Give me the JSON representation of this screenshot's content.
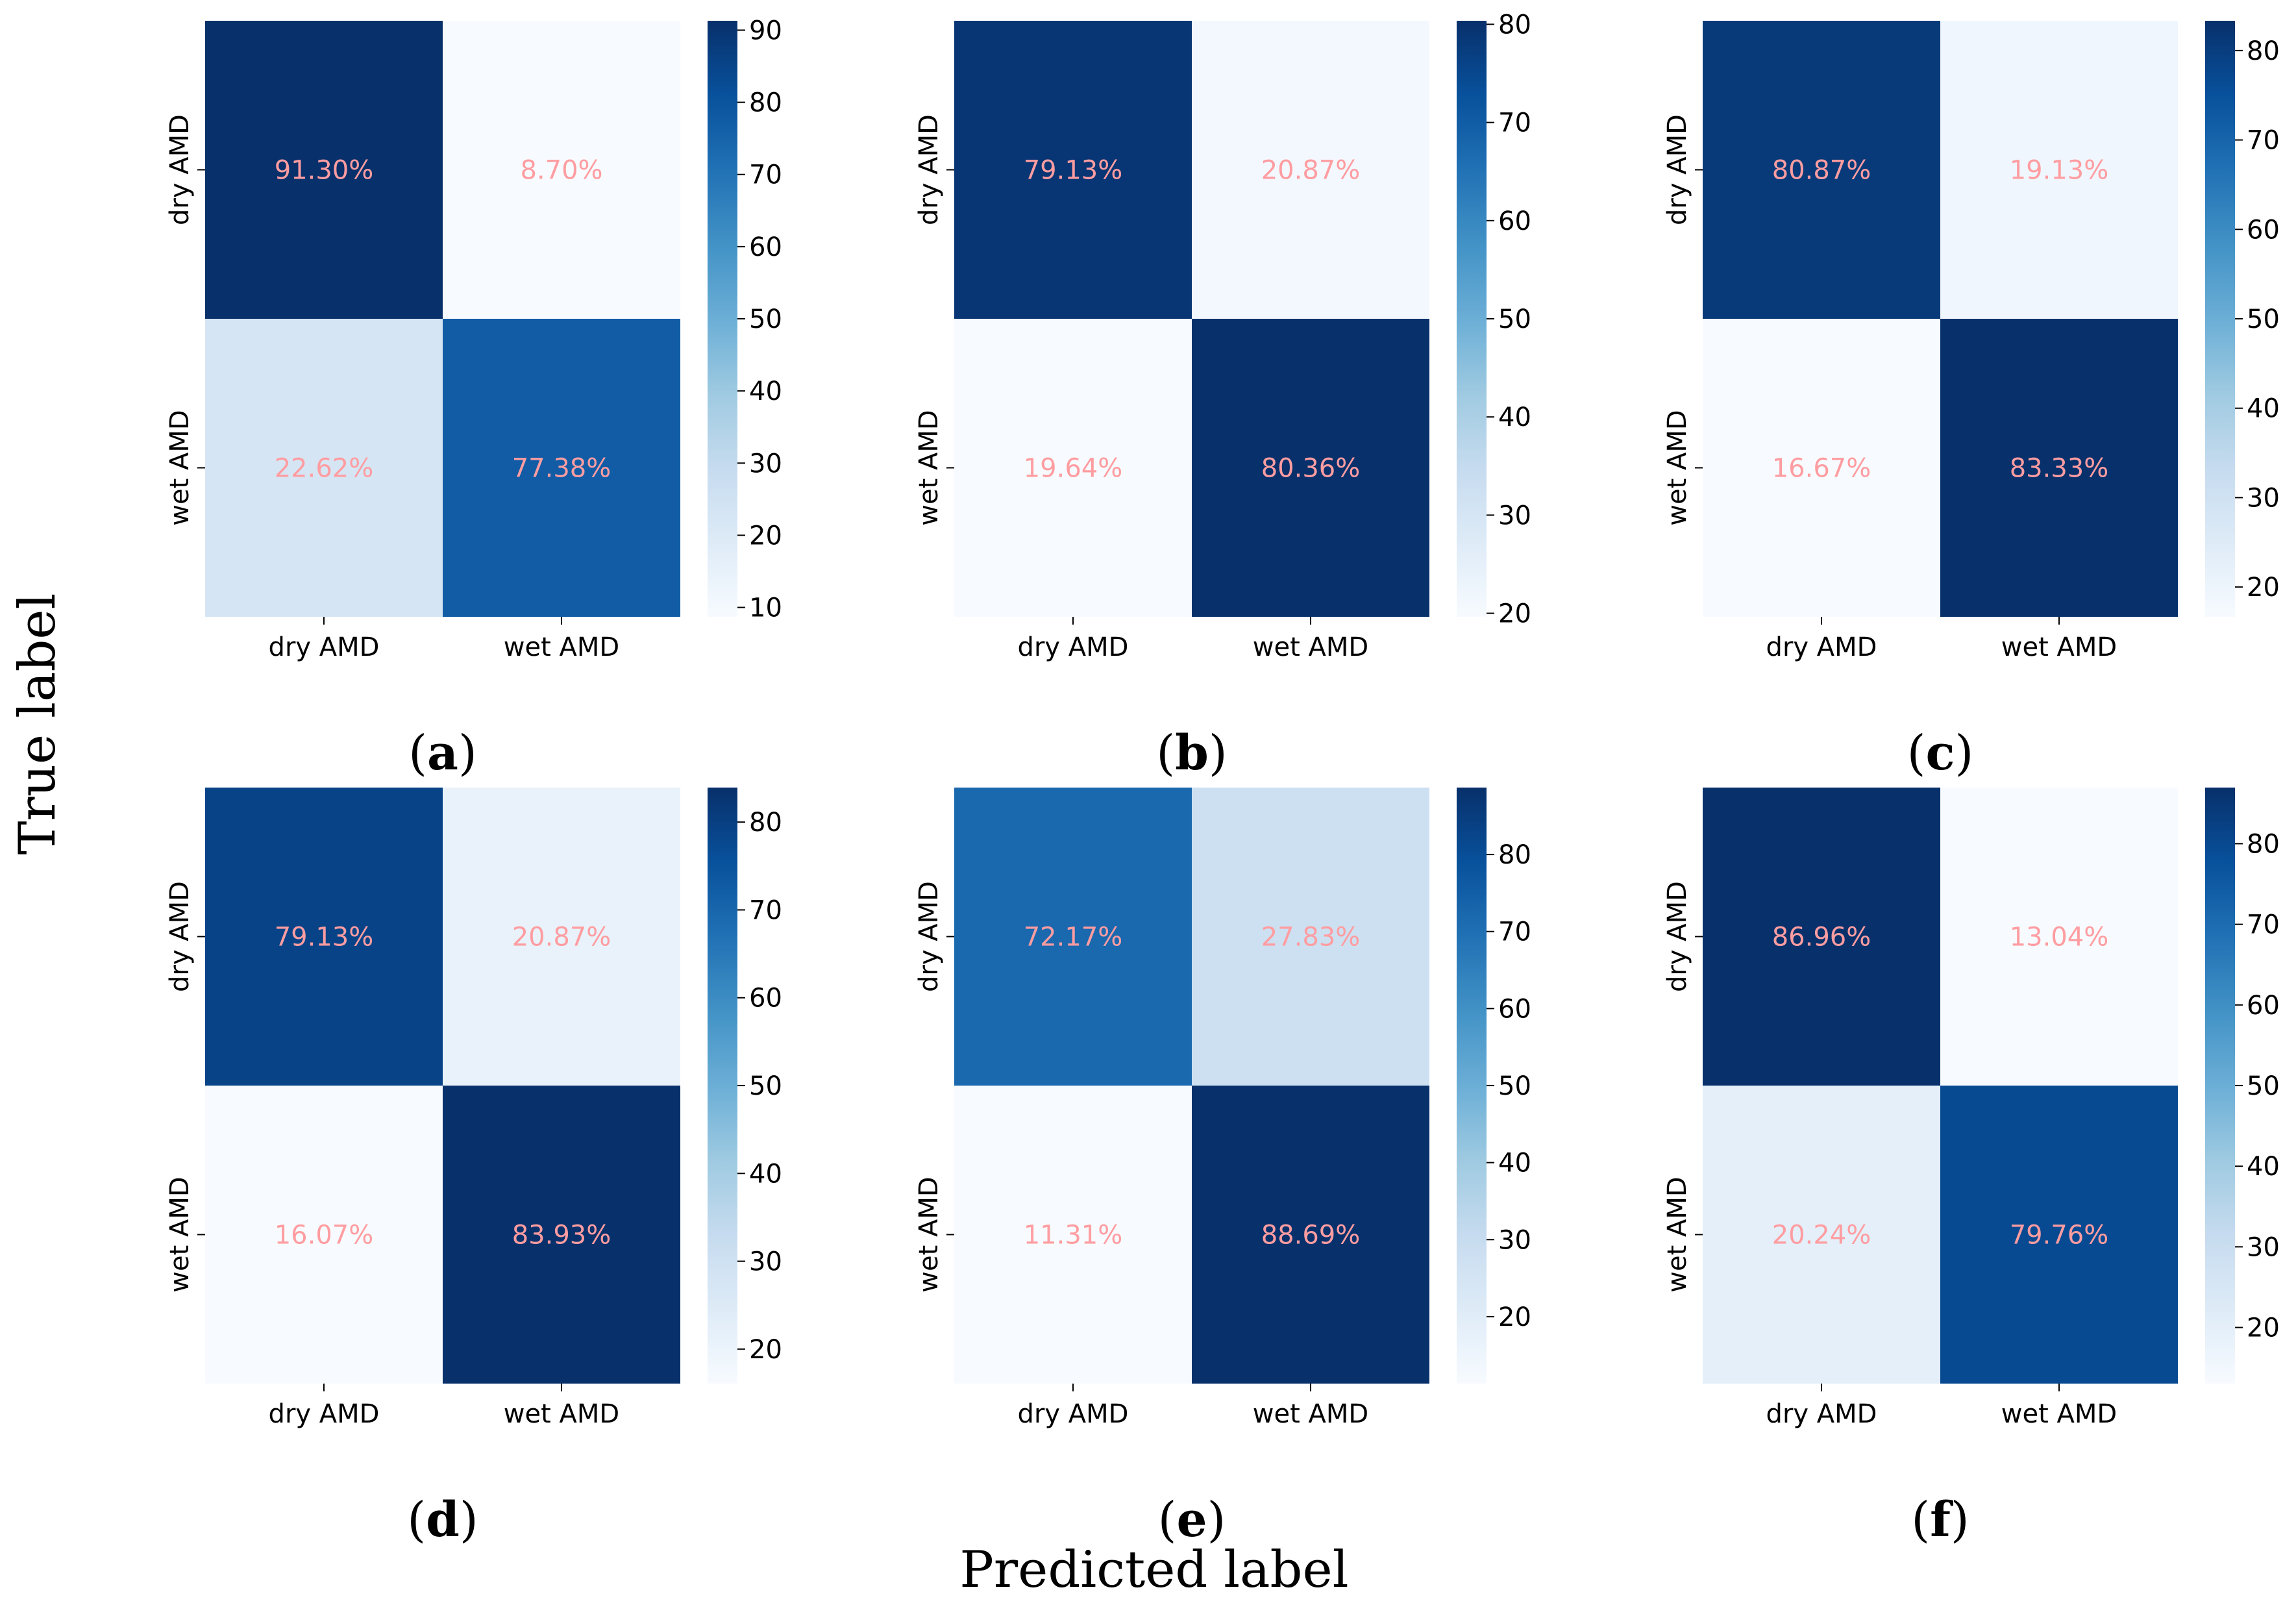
{
  "figure": {
    "ylabel": "True label",
    "xlabel": "Predicted label"
  },
  "style": {
    "annotation_color": "#ff9da1",
    "colormap": "Blues",
    "colormap_stops": [
      "#f7fbff",
      "#deebf7",
      "#c6dbef",
      "#9ecae1",
      "#6baed6",
      "#4292c6",
      "#2171b5",
      "#08519c",
      "#08306b"
    ]
  },
  "chart_data": [
    {
      "type": "heatmap",
      "panel": "(a)",
      "x_labels": [
        "dry AMD",
        "wet AMD"
      ],
      "y_labels": [
        "dry AMD",
        "wet AMD"
      ],
      "values": [
        [
          91.3,
          8.7
        ],
        [
          22.62,
          77.38
        ]
      ],
      "annotations": [
        [
          "91.30%",
          "8.70%"
        ],
        [
          "22.62%",
          "77.38%"
        ]
      ],
      "colorbar": {
        "vmin": 8.7,
        "vmax": 91.3,
        "ticks": [
          10,
          20,
          30,
          40,
          50,
          60,
          70,
          80,
          90
        ]
      }
    },
    {
      "type": "heatmap",
      "panel": "(b)",
      "x_labels": [
        "dry AMD",
        "wet AMD"
      ],
      "y_labels": [
        "dry AMD",
        "wet AMD"
      ],
      "values": [
        [
          79.13,
          20.87
        ],
        [
          19.64,
          80.36
        ]
      ],
      "annotations": [
        [
          "79.13%",
          "20.87%"
        ],
        [
          "19.64%",
          "80.36%"
        ]
      ],
      "colorbar": {
        "vmin": 19.64,
        "vmax": 80.36,
        "ticks": [
          20,
          30,
          40,
          50,
          60,
          70,
          80
        ]
      }
    },
    {
      "type": "heatmap",
      "panel": "(c)",
      "x_labels": [
        "dry AMD",
        "wet AMD"
      ],
      "y_labels": [
        "dry AMD",
        "wet AMD"
      ],
      "values": [
        [
          80.87,
          19.13
        ],
        [
          16.67,
          83.33
        ]
      ],
      "annotations": [
        [
          "80.87%",
          "19.13%"
        ],
        [
          "16.67%",
          "83.33%"
        ]
      ],
      "colorbar": {
        "vmin": 16.67,
        "vmax": 83.33,
        "ticks": [
          20,
          30,
          40,
          50,
          60,
          70,
          80
        ]
      }
    },
    {
      "type": "heatmap",
      "panel": "(d)",
      "x_labels": [
        "dry AMD",
        "wet AMD"
      ],
      "y_labels": [
        "dry AMD",
        "wet AMD"
      ],
      "values": [
        [
          79.13,
          20.87
        ],
        [
          16.07,
          83.93
        ]
      ],
      "annotations": [
        [
          "79.13%",
          "20.87%"
        ],
        [
          "16.07%",
          "83.93%"
        ]
      ],
      "colorbar": {
        "vmin": 16.07,
        "vmax": 83.93,
        "ticks": [
          20,
          30,
          40,
          50,
          60,
          70,
          80
        ]
      }
    },
    {
      "type": "heatmap",
      "panel": "(e)",
      "x_labels": [
        "dry AMD",
        "wet AMD"
      ],
      "y_labels": [
        "dry AMD",
        "wet AMD"
      ],
      "values": [
        [
          72.17,
          27.83
        ],
        [
          11.31,
          88.69
        ]
      ],
      "annotations": [
        [
          "72.17%",
          "27.83%"
        ],
        [
          "11.31%",
          "88.69%"
        ]
      ],
      "colorbar": {
        "vmin": 11.31,
        "vmax": 88.69,
        "ticks": [
          20,
          30,
          40,
          50,
          60,
          70,
          80
        ]
      }
    },
    {
      "type": "heatmap",
      "panel": "(f)",
      "x_labels": [
        "dry AMD",
        "wet AMD"
      ],
      "y_labels": [
        "dry AMD",
        "wet AMD"
      ],
      "values": [
        [
          86.96,
          13.04
        ],
        [
          20.24,
          79.76
        ]
      ],
      "annotations": [
        [
          "86.96%",
          "13.04%"
        ],
        [
          "20.24%",
          "79.76%"
        ]
      ],
      "colorbar": {
        "vmin": 13.04,
        "vmax": 86.96,
        "ticks": [
          20,
          30,
          40,
          50,
          60,
          70,
          80
        ]
      }
    }
  ]
}
